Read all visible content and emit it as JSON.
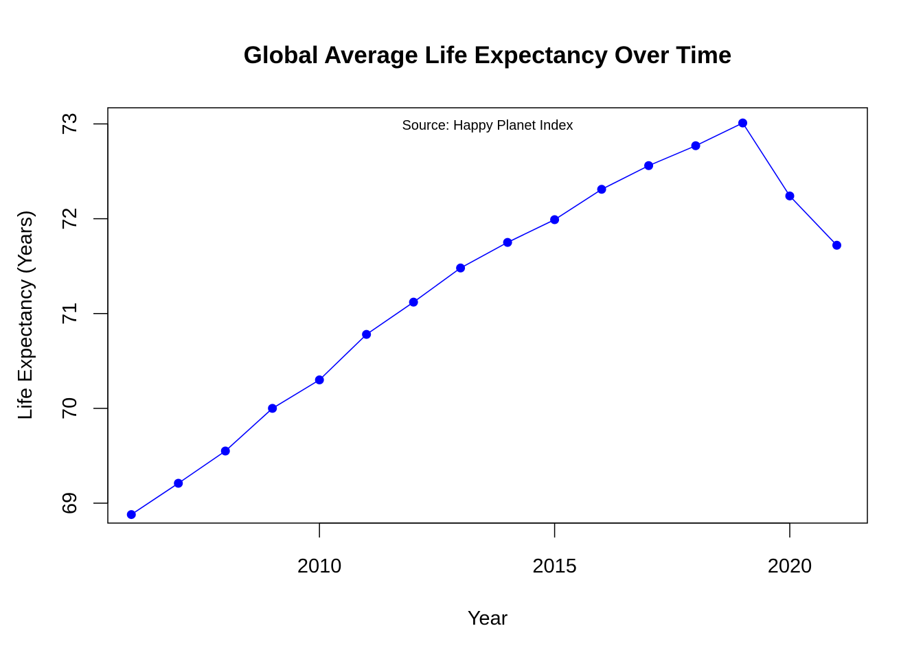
{
  "chart_data": {
    "type": "line",
    "title": "Global Average Life Expectancy Over Time",
    "xlabel": "Year",
    "ylabel": "Life Expectancy (Years)",
    "annotation": "Source: Happy Planet Index",
    "xlim": [
      2005.5,
      2021.65
    ],
    "ylim": [
      68.79,
      73.17
    ],
    "x_ticks": [
      2010,
      2015,
      2020
    ],
    "y_ticks": [
      69,
      70,
      71,
      72,
      73
    ],
    "grid": false,
    "series": [
      {
        "color": "#0000ff",
        "x": [
          2006,
          2007,
          2008,
          2009,
          2010,
          2011,
          2012,
          2013,
          2014,
          2015,
          2016,
          2017,
          2018,
          2019,
          2020,
          2021
        ],
        "y": [
          68.88,
          69.21,
          69.55,
          70.0,
          70.3,
          70.78,
          71.12,
          71.48,
          71.75,
          71.99,
          72.31,
          72.56,
          72.77,
          73.01,
          72.24,
          71.72
        ]
      }
    ]
  }
}
